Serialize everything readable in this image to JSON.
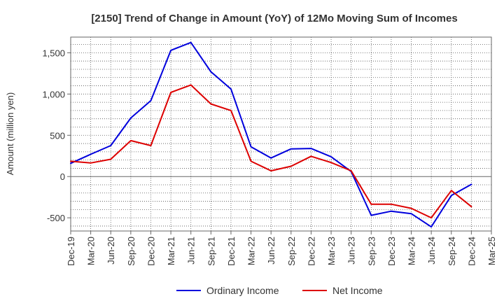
{
  "chart_data": {
    "type": "line",
    "title": "[2150]  Trend of Change in Amount (YoY) of 12Mo Moving Sum of Incomes",
    "xlabel": "",
    "ylabel": "Amount (million yen)",
    "categories": [
      "Dec-19",
      "Mar-20",
      "Jun-20",
      "Sep-20",
      "Dec-20",
      "Mar-21",
      "Jun-21",
      "Sep-21",
      "Dec-21",
      "Mar-22",
      "Jun-22",
      "Sep-22",
      "Dec-22",
      "Mar-23",
      "Jun-23",
      "Sep-23",
      "Dec-23",
      "Mar-24",
      "Jun-24",
      "Sep-24",
      "Dec-24",
      "Mar-25"
    ],
    "ylim": [
      -660,
      1690
    ],
    "yticks": [
      -500,
      0,
      500,
      1000,
      1500
    ],
    "ytick_labels": [
      "-500",
      "0",
      "500",
      "1,000",
      "1,500"
    ],
    "grid": true,
    "legend_position": "bottom",
    "series": [
      {
        "name": "Ordinary Income",
        "color": "#0000dd",
        "values": [
          160,
          270,
          375,
          710,
          920,
          1530,
          1625,
          1270,
          1060,
          360,
          225,
          335,
          340,
          240,
          60,
          -470,
          -420,
          -450,
          -610,
          -230,
          -95,
          null
        ]
      },
      {
        "name": "Net Income",
        "color": "#dd0000",
        "values": [
          185,
          165,
          210,
          435,
          375,
          1020,
          1110,
          880,
          800,
          185,
          70,
          125,
          245,
          170,
          70,
          -335,
          -335,
          -385,
          -500,
          -170,
          -365,
          null
        ]
      }
    ]
  }
}
